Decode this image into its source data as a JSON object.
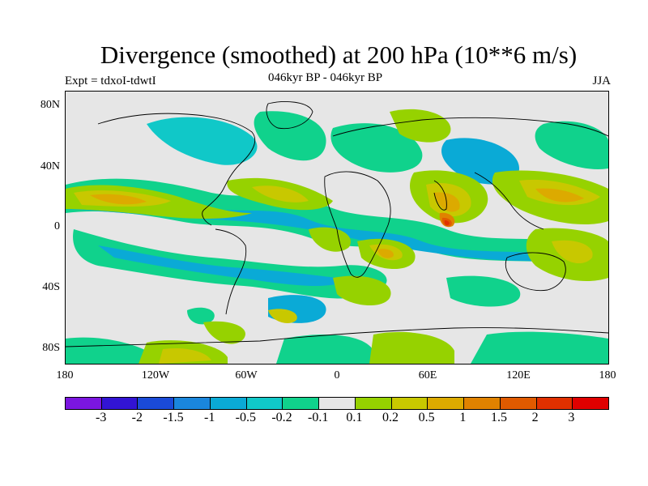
{
  "header": {
    "title": "Divergence (smoothed) at 200 hPa (10**6 m/s)",
    "expt": "Expt = tdxoI-tdwtI",
    "period": "046kyr BP - 046kyr BP",
    "season": "JJA"
  },
  "map": {
    "lat_labels": [
      "80N",
      "40N",
      "0",
      "40S",
      "80S"
    ],
    "lon_labels": [
      "180",
      "120W",
      "60W",
      "0",
      "60E",
      "120E",
      "180"
    ],
    "background_color": "#e6e6e6",
    "land_color": "#000000"
  },
  "legend": {
    "colors": [
      "#7b16e0",
      "#3214d4",
      "#1a4ad8",
      "#1a86dc",
      "#0aaad6",
      "#10c8c8",
      "#10d28c",
      "#e6e6e6",
      "#96d200",
      "#c8c800",
      "#dcaa00",
      "#e08200",
      "#e05a00",
      "#e03000",
      "#e00000"
    ],
    "labels": [
      "-3",
      "-2",
      "-1.5",
      "-1",
      "-0.5",
      "-0.2",
      "-0.1",
      "0.1",
      "0.2",
      "0.5",
      "1",
      "1.5",
      "2",
      "3"
    ]
  }
}
